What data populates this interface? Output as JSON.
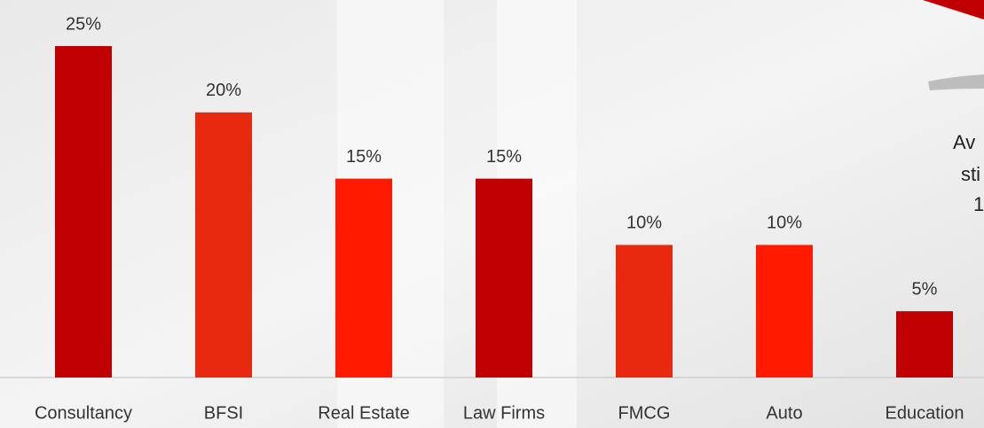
{
  "chart_data": {
    "type": "bar",
    "categories": [
      "Consultancy",
      "BFSI",
      "Real Estate",
      "Law Firms",
      "FMCG",
      "Auto",
      "Education"
    ],
    "values": [
      25,
      20,
      15,
      15,
      10,
      10,
      5
    ],
    "value_labels": [
      "25%",
      "20%",
      "15%",
      "15%",
      "10%",
      "10%",
      "5%"
    ],
    "colors": [
      "#c00000",
      "#e8290f",
      "#ff1a00",
      "#c00000",
      "#e8290f",
      "#ff1a00",
      "#c00000"
    ],
    "annotations": [
      "Av",
      "sti",
      "1"
    ]
  }
}
